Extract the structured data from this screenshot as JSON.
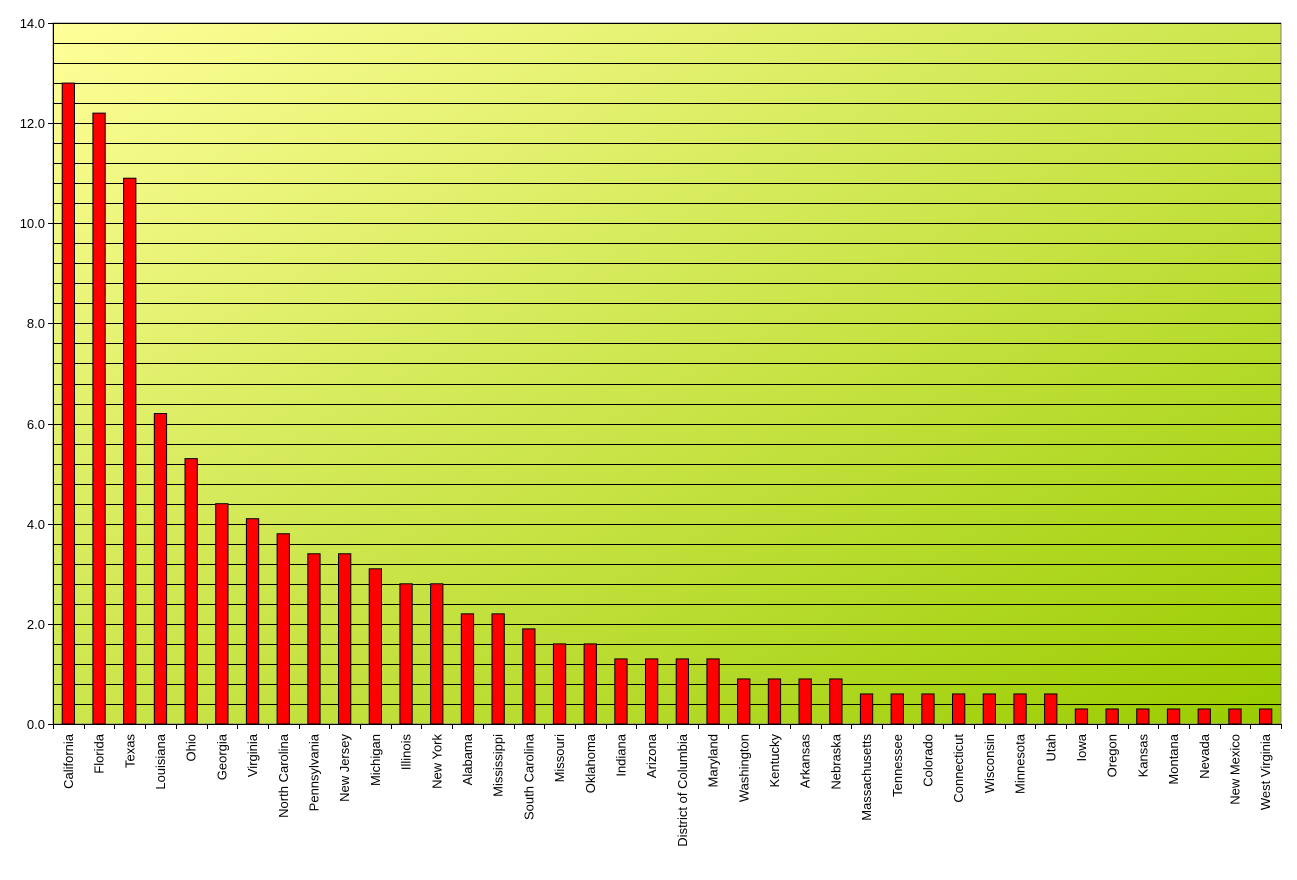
{
  "chart_data": {
    "type": "bar",
    "title": "",
    "xlabel": "",
    "ylabel": "",
    "ylim": [
      0,
      14
    ],
    "y_ticks": [
      "0.0",
      "2.0",
      "4.0",
      "6.0",
      "8.0",
      "10.0",
      "12.0",
      "14.0"
    ],
    "grid": true,
    "legend": "none",
    "categories": [
      "California",
      "Florida",
      "Texas",
      "Louisiana",
      "Ohio",
      "Georgia",
      "Virginia",
      "North Carolina",
      "Pennsylvania",
      "New Jersey",
      "Michigan",
      "Illinois",
      "New York",
      "Alabama",
      "Mississippi",
      "South Carolina",
      "Missouri",
      "Oklahoma",
      "Indiana",
      "Arizona",
      "District of Columbia",
      "Maryland",
      "Washington",
      "Kentucky",
      "Arkansas",
      "Nebraska",
      "Massachusetts",
      "Tennessee",
      "Colorado",
      "Connecticut",
      "Wisconsin",
      "Minnesota",
      "Utah",
      "Iowa",
      "Oregon",
      "Kansas",
      "Montana",
      "Nevada",
      "New Mexico",
      "West Virginia"
    ],
    "values": [
      12.8,
      12.2,
      10.9,
      6.2,
      5.3,
      4.4,
      4.1,
      3.8,
      3.4,
      3.4,
      3.1,
      2.8,
      2.8,
      2.2,
      2.2,
      1.9,
      1.6,
      1.6,
      1.3,
      1.3,
      1.3,
      1.3,
      0.9,
      0.9,
      0.9,
      0.9,
      0.6,
      0.6,
      0.6,
      0.6,
      0.6,
      0.6,
      0.6,
      0.3,
      0.3,
      0.3,
      0.3,
      0.3,
      0.3,
      0.3
    ],
    "colors": {
      "bar_fill": "#ff0000",
      "bar_stroke": "#000000",
      "bg_start": "#ffff99",
      "bg_end": "#99cc00",
      "grid": "#000000"
    }
  }
}
